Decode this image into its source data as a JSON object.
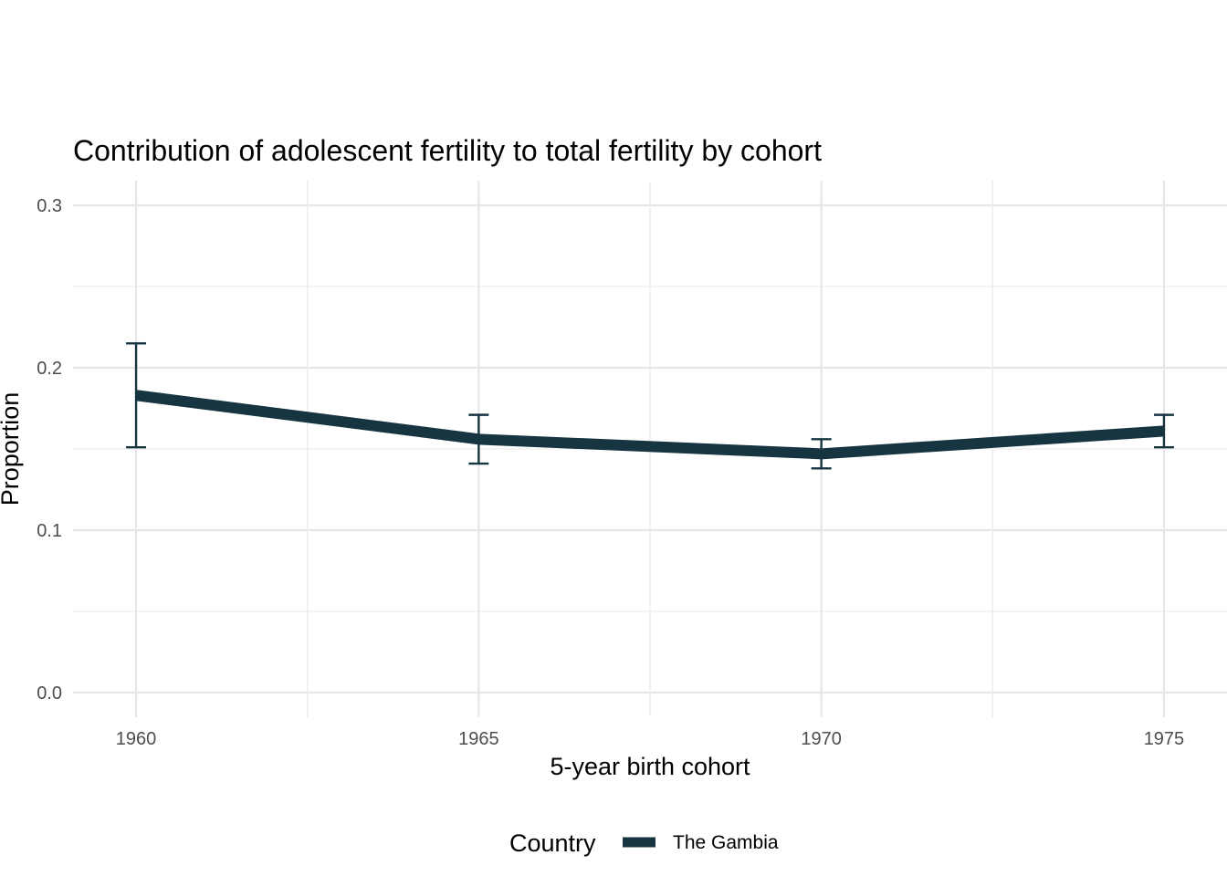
{
  "chart_data": {
    "type": "line",
    "title": "Contribution of adolescent fertility to total fertility by cohort",
    "xlabel": "5-year birth cohort",
    "ylabel": "Proportion",
    "x": [
      1960,
      1965,
      1970,
      1975
    ],
    "xticks": [
      "1960",
      "1965",
      "1970",
      "1975"
    ],
    "xlim": [
      1959.08,
      1975.92
    ],
    "yticks": [
      "0.0",
      "0.1",
      "0.2",
      "0.3"
    ],
    "ylim": [
      0,
      0.3
    ],
    "grid": true,
    "legend": {
      "title": "Country",
      "position": "bottom"
    },
    "series": [
      {
        "name": "The Gambia",
        "color": "#163540",
        "values": [
          0.183,
          0.156,
          0.147,
          0.161
        ],
        "error_low": [
          0.151,
          0.141,
          0.138,
          0.151
        ],
        "error_high": [
          0.215,
          0.171,
          0.156,
          0.171
        ]
      }
    ]
  }
}
